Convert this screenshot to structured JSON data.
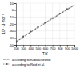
{
  "chart_data": {
    "type": "line",
    "xlabel": "T/K",
    "ylabel": "10³ · J·mol⁻¹",
    "x": [
      200,
      300,
      400,
      500,
      600,
      700,
      800,
      900,
      1000
    ],
    "series": [
      {
        "name": "according to Kubaschewski",
        "color": "#555555",
        "line_style": "dashed",
        "values": [
          -46.0,
          -39.0,
          -32.0,
          -25.5,
          -19.0,
          -12.5,
          -6.0,
          0.5,
          7.0
        ]
      },
      {
        "name": "according to Reid et al.",
        "color": "#555555",
        "line_style": "dotted",
        "marker": "square",
        "values": [
          -45.0,
          -38.0,
          -31.0,
          -24.5,
          -18.0,
          -11.5,
          -5.0,
          1.5,
          8.0
        ]
      }
    ],
    "xlim": [
      200,
      1000
    ],
    "ylim": [
      -50,
      10
    ],
    "xticks": [
      200,
      300,
      400,
      500,
      600,
      700,
      800,
      900,
      1000
    ],
    "yticks": [
      -50,
      -40,
      -30,
      -20,
      -10,
      0,
      10
    ],
    "grid": true,
    "legend": "bottom"
  }
}
